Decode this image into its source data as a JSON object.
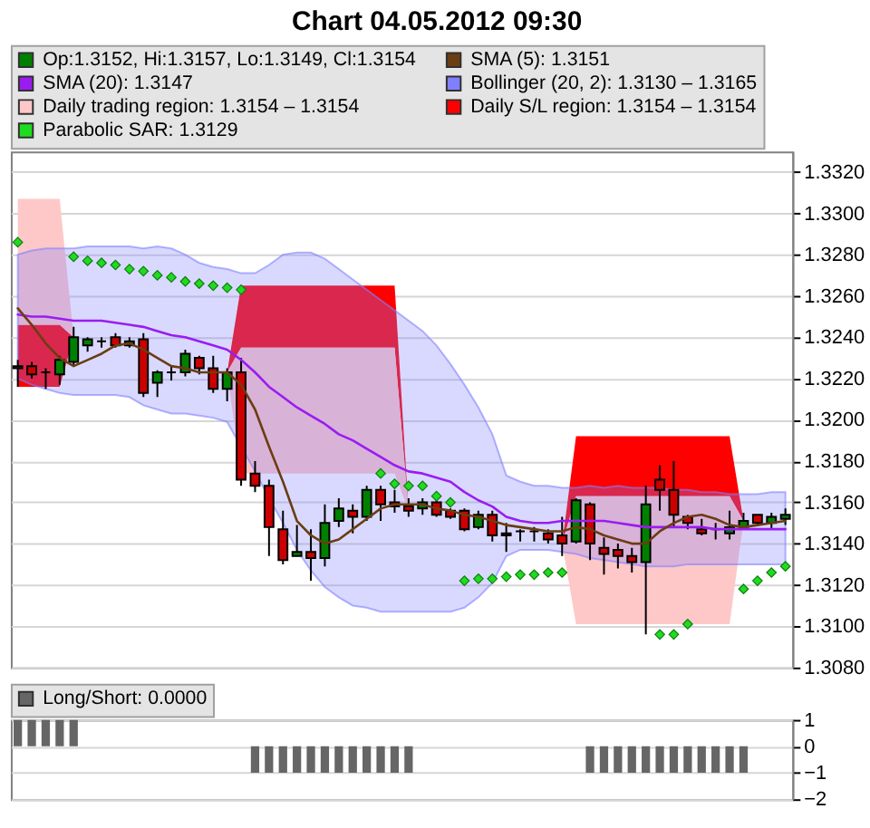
{
  "chart_data": [
    {
      "type": "candlestick",
      "title": "Chart 04.05.2012 09:30",
      "categories": [
        null,
        null,
        null,
        null,
        null,
        null,
        null,
        null,
        null,
        null,
        null,
        null,
        null,
        null,
        null,
        null,
        null,
        null,
        null,
        null,
        null,
        null,
        null,
        null,
        null,
        null,
        null,
        null,
        null,
        null,
        null,
        null,
        null,
        null,
        null,
        null,
        null,
        null,
        null,
        null,
        null,
        null,
        null,
        null,
        null,
        null,
        null,
        null,
        null,
        null,
        null,
        null,
        null,
        null,
        null,
        null
      ],
      "ylim": [
        1.308,
        1.333
      ],
      "yticks": [
        {
          "value": 1.308,
          "label": "1.3080"
        },
        {
          "value": 1.31,
          "label": "1.3100"
        },
        {
          "value": 1.312,
          "label": "1.3120"
        },
        {
          "value": 1.314,
          "label": "1.3140"
        },
        {
          "value": 1.316,
          "label": "1.3160"
        },
        {
          "value": 1.318,
          "label": "1.3180"
        },
        {
          "value": 1.32,
          "label": "1.3200"
        },
        {
          "value": 1.322,
          "label": "1.3220"
        },
        {
          "value": 1.324,
          "label": "1.3240"
        },
        {
          "value": 1.326,
          "label": "1.3260"
        },
        {
          "value": 1.328,
          "label": "1.3280"
        },
        {
          "value": 1.33,
          "label": "1.3300"
        },
        {
          "value": 1.332,
          "label": "1.3320"
        }
      ],
      "grid": "y",
      "legend": "top",
      "series": [
        {
          "name": "Op:1.3152, Hi:1.3157, Lo:1.3149, Cl:1.3154",
          "type": "candlestick",
          "color": "#008000",
          "ohlc": [
            [
              1.3225,
              1.3229,
              1.3216,
              1.3226
            ],
            [
              1.3226,
              1.3228,
              1.322,
              1.3222
            ],
            [
              1.3223,
              1.3225,
              1.3215,
              1.3223
            ],
            [
              1.3222,
              1.3231,
              1.3217,
              1.3229
            ],
            [
              1.3228,
              1.3245,
              1.3226,
              1.324
            ],
            [
              1.3236,
              1.324,
              1.3233,
              1.3239
            ],
            [
              1.3238,
              1.324,
              1.3235,
              1.3238
            ],
            [
              1.324,
              1.3242,
              1.3235,
              1.3236
            ],
            [
              1.3236,
              1.324,
              1.3235,
              1.3238
            ],
            [
              1.3239,
              1.3242,
              1.3211,
              1.3213
            ],
            [
              1.3218,
              1.3224,
              1.3211,
              1.3223
            ],
            [
              1.3223,
              1.3226,
              1.3219,
              1.3223
            ],
            [
              1.3223,
              1.3234,
              1.3221,
              1.3232
            ],
            [
              1.323,
              1.3231,
              1.3222,
              1.3225
            ],
            [
              1.3225,
              1.3231,
              1.3213,
              1.3215
            ],
            [
              1.3215,
              1.3225,
              1.3209,
              1.3223
            ],
            [
              1.3223,
              1.323,
              1.3168,
              1.3171
            ],
            [
              1.3174,
              1.318,
              1.3165,
              1.3168
            ],
            [
              1.3168,
              1.3171,
              1.3134,
              1.3148
            ],
            [
              1.3147,
              1.3156,
              1.313,
              1.3132
            ],
            [
              1.3134,
              1.3149,
              1.3134,
              1.3136
            ],
            [
              1.3136,
              1.3147,
              1.3122,
              1.3133
            ],
            [
              1.3133,
              1.3159,
              1.3129,
              1.315
            ],
            [
              1.3151,
              1.3162,
              1.3148,
              1.3157
            ],
            [
              1.3156,
              1.3159,
              1.3145,
              1.3153
            ],
            [
              1.3153,
              1.3168,
              1.3151,
              1.3166
            ],
            [
              1.3166,
              1.3168,
              1.3151,
              1.3159
            ],
            [
              1.316,
              1.3166,
              1.3155,
              1.3158
            ],
            [
              1.3158,
              1.3162,
              1.3153,
              1.3156
            ],
            [
              1.3157,
              1.3162,
              1.3154,
              1.316
            ],
            [
              1.316,
              1.3162,
              1.3153,
              1.3154
            ],
            [
              1.3156,
              1.3157,
              1.3152,
              1.3153
            ],
            [
              1.3156,
              1.3157,
              1.3146,
              1.3147
            ],
            [
              1.3148,
              1.3156,
              1.3147,
              1.3154
            ],
            [
              1.3154,
              1.3156,
              1.3141,
              1.3144
            ],
            [
              1.3145,
              1.315,
              1.3136,
              1.3144
            ],
            [
              1.3146,
              1.3147,
              1.3141,
              1.3146
            ],
            [
              1.3146,
              1.3148,
              1.3141,
              1.3146
            ],
            [
              1.3145,
              1.3147,
              1.314,
              1.3142
            ],
            [
              1.3144,
              1.3153,
              1.3134,
              1.314
            ],
            [
              1.3141,
              1.3162,
              1.314,
              1.3161
            ],
            [
              1.3159,
              1.316,
              1.3132,
              1.314
            ],
            [
              1.3138,
              1.3143,
              1.3125,
              1.3135
            ],
            [
              1.3137,
              1.314,
              1.3128,
              1.3134
            ],
            [
              1.3134,
              1.3138,
              1.3126,
              1.3131
            ],
            [
              1.3131,
              1.3168,
              1.3096,
              1.3159
            ],
            [
              1.3171,
              1.3178,
              1.3156,
              1.3166
            ],
            [
              1.3166,
              1.318,
              1.3148,
              1.3154
            ],
            [
              1.3153,
              1.3154,
              1.3147,
              1.315
            ],
            [
              1.3147,
              1.3152,
              1.3144,
              1.3145
            ],
            [
              1.3147,
              1.315,
              1.3142,
              1.3147
            ],
            [
              1.3145,
              1.3156,
              1.3142,
              1.3148
            ],
            [
              1.3148,
              1.3155,
              1.3147,
              1.3151
            ],
            [
              1.3154,
              1.3154,
              1.3149,
              1.315
            ],
            [
              1.315,
              1.3155,
              1.3147,
              1.3153
            ],
            [
              1.3152,
              1.3157,
              1.3149,
              1.3154
            ]
          ],
          "colors": [
            "#008000",
            "#cc0000",
            "#000000",
            "#008000",
            "#008000",
            "#008000",
            "#000000",
            "#cc0000",
            "#008000",
            "#cc0000",
            "#008000",
            "#000000",
            "#008000",
            "#cc0000",
            "#cc0000",
            "#008000",
            "#cc0000",
            "#cc0000",
            "#cc0000",
            "#cc0000",
            "#008000",
            "#cc0000",
            "#008000",
            "#008000",
            "#cc0000",
            "#008000",
            "#cc0000",
            "#cc0000",
            "#cc0000",
            "#008000",
            "#cc0000",
            "#cc0000",
            "#cc0000",
            "#008000",
            "#cc0000",
            "#cc0000",
            "#000000",
            "#000000",
            "#cc0000",
            "#cc0000",
            "#008000",
            "#cc0000",
            "#cc0000",
            "#cc0000",
            "#cc0000",
            "#008000",
            "#cc0000",
            "#cc0000",
            "#cc0000",
            "#cc0000",
            "#000000",
            "#008000",
            "#008000",
            "#cc0000",
            "#008000",
            "#008000"
          ]
        },
        {
          "name": "SMA (5): 1.3151",
          "type": "line",
          "color": "#6b3d12",
          "values": [
            1.3254,
            1.3246,
            1.3237,
            1.323,
            1.3226,
            1.3229,
            1.3232,
            1.3236,
            1.3237,
            1.3234,
            1.323,
            1.3226,
            1.3225,
            1.3223,
            1.3223,
            1.3223,
            1.3217,
            1.3205,
            1.3187,
            1.317,
            1.3151,
            1.3144,
            1.314,
            1.3142,
            1.3147,
            1.3152,
            1.3157,
            1.3159,
            1.3159,
            1.3159,
            1.3157,
            1.3156,
            1.3154,
            1.3153,
            1.3151,
            1.3149,
            1.3148,
            1.3147,
            1.3146,
            1.3146,
            1.3148,
            1.3147,
            1.3144,
            1.3142,
            1.314,
            1.314,
            1.3146,
            1.315,
            1.3153,
            1.3154,
            1.3152,
            1.3149,
            1.3148,
            1.3149,
            1.315,
            1.3151
          ]
        },
        {
          "name": "SMA (20): 1.3147",
          "type": "line",
          "color": "#9b1cf0",
          "values": [
            1.3251,
            1.325,
            1.325,
            1.3249,
            1.3248,
            1.3248,
            1.3248,
            1.3247,
            1.3246,
            1.3245,
            1.3243,
            1.3241,
            1.324,
            1.3238,
            1.3236,
            1.3234,
            1.3229,
            1.3223,
            1.3216,
            1.3211,
            1.3206,
            1.3202,
            1.3198,
            1.3193,
            1.319,
            1.3186,
            1.3182,
            1.3178,
            1.3175,
            1.3174,
            1.3172,
            1.317,
            1.3165,
            1.3161,
            1.3158,
            1.3153,
            1.3151,
            1.315,
            1.315,
            1.3151,
            1.3151,
            1.3151,
            1.3151,
            1.315,
            1.3149,
            1.3148,
            1.3148,
            1.3148,
            1.3148,
            1.3148,
            1.3147,
            1.3147,
            1.3147,
            1.3147,
            1.3147,
            1.3147
          ]
        },
        {
          "name": "Bollinger (20, 2): 1.3130 – 1.3165",
          "type": "area",
          "color": "#8080ff",
          "values": [
            null,
            null,
            null,
            null,
            null,
            null,
            null,
            null,
            null,
            null,
            null,
            null,
            null,
            null,
            null,
            null,
            null,
            null,
            null,
            null,
            null,
            null,
            null,
            null,
            null,
            null,
            null,
            null,
            null,
            null,
            null,
            null,
            null,
            null,
            null,
            null,
            null,
            null,
            null,
            null,
            null,
            null,
            null,
            null,
            null,
            null,
            null,
            null,
            null,
            null,
            null,
            null,
            null,
            null,
            null,
            null
          ],
          "lower": [
            1.322,
            1.3217,
            1.3215,
            1.3213,
            1.3212,
            1.3212,
            1.3212,
            1.3212,
            1.3211,
            1.3207,
            1.3205,
            1.3203,
            1.3203,
            1.3202,
            1.3201,
            1.3199,
            1.3187,
            1.3175,
            1.3162,
            1.315,
            1.3137,
            1.3127,
            1.3119,
            1.3114,
            1.311,
            1.3109,
            1.3107,
            1.3107,
            1.3107,
            1.3107,
            1.3107,
            1.3107,
            1.3109,
            1.3114,
            1.3121,
            1.3134,
            1.3137,
            1.3137,
            1.3137,
            1.3136,
            1.3135,
            1.3133,
            1.3132,
            1.3131,
            1.313,
            1.3129,
            1.3129,
            1.3129,
            1.313,
            1.313,
            1.313,
            1.313,
            1.313,
            1.313,
            1.313,
            1.313
          ],
          "upper": [
            1.328,
            1.3282,
            1.3283,
            1.3283,
            1.3283,
            1.3284,
            1.3284,
            1.3284,
            1.3284,
            1.3283,
            1.3284,
            1.3283,
            1.328,
            1.3276,
            1.3274,
            1.3273,
            1.3271,
            1.3271,
            1.3275,
            1.328,
            1.3281,
            1.3281,
            1.3278,
            1.3273,
            1.3268,
            1.3263,
            1.3258,
            1.3253,
            1.3248,
            1.3243,
            1.3236,
            1.3227,
            1.3217,
            1.3206,
            1.3193,
            1.3173,
            1.317,
            1.3168,
            1.3168,
            1.3167,
            1.3167,
            1.3168,
            1.3167,
            1.3168,
            1.3167,
            1.3167,
            1.3167,
            1.3166,
            1.3166,
            1.3165,
            1.3165,
            1.3164,
            1.3164,
            1.3164,
            1.3165,
            1.3165
          ]
        },
        {
          "name": "Daily trading region: 1.3154 – 1.3154",
          "type": "area",
          "color": "#ffc8c8",
          "values": [
            null,
            null,
            null,
            null,
            null,
            null,
            null,
            null,
            null,
            null,
            null,
            null,
            null,
            null,
            null,
            null,
            null,
            null,
            null,
            null,
            null,
            null,
            null,
            null,
            null,
            null,
            null,
            null,
            null,
            null,
            null,
            null,
            null,
            null,
            null,
            null,
            null,
            null,
            null,
            null,
            null,
            null,
            null,
            null,
            null,
            null,
            null,
            null,
            null,
            null,
            null,
            null,
            null,
            null,
            null,
            null
          ],
          "lower": [
            1.3246,
            1.3246,
            1.3246,
            1.3246,
            1.324,
            1.3239,
            1.3238,
            1.3236,
            1.3238,
            1.3213,
            1.3223,
            1.3223,
            1.3232,
            1.3225,
            1.3215,
            1.3223,
            1.3174,
            1.3174,
            1.3174,
            1.3174,
            1.3174,
            1.3174,
            1.3174,
            1.3174,
            1.3174,
            1.3174,
            1.3174,
            1.3174,
            1.3156,
            1.316,
            1.3154,
            1.3153,
            1.3147,
            1.3154,
            1.3144,
            1.3144,
            1.3146,
            1.3146,
            1.3142,
            1.314,
            1.3101,
            1.3101,
            1.3101,
            1.3101,
            1.3101,
            1.3101,
            1.3101,
            1.3101,
            1.3101,
            1.3101,
            1.3101,
            1.3101,
            1.3151,
            1.315,
            1.3153,
            1.3154
          ],
          "upper": [
            1.3307,
            1.3307,
            1.3307,
            1.3307,
            1.324,
            1.3239,
            1.3238,
            1.3236,
            1.3238,
            1.3213,
            1.3223,
            1.3223,
            1.3232,
            1.3225,
            1.3215,
            1.3223,
            1.3235,
            1.3235,
            1.3235,
            1.3235,
            1.3235,
            1.3235,
            1.3235,
            1.3235,
            1.3235,
            1.3235,
            1.3235,
            1.3235,
            1.3156,
            1.316,
            1.3154,
            1.3153,
            1.3147,
            1.3154,
            1.3144,
            1.3144,
            1.3146,
            1.3146,
            1.3142,
            1.314,
            1.3163,
            1.3163,
            1.3163,
            1.3163,
            1.3163,
            1.3163,
            1.3163,
            1.3163,
            1.3163,
            1.3163,
            1.3163,
            1.3163,
            1.3151,
            1.315,
            1.3153,
            1.3154
          ]
        },
        {
          "name": "Daily S/L region: 1.3154 – 1.3154",
          "type": "area",
          "color": "#ff0000",
          "values": [
            null,
            null,
            null,
            null,
            null,
            null,
            null,
            null,
            null,
            null,
            null,
            null,
            null,
            null,
            null,
            null,
            null,
            null,
            null,
            null,
            null,
            null,
            null,
            null,
            null,
            null,
            null,
            null,
            null,
            null,
            null,
            null,
            null,
            null,
            null,
            null,
            null,
            null,
            null,
            null,
            null,
            null,
            null,
            null,
            null,
            null,
            null,
            null,
            null,
            null,
            null,
            null,
            null,
            null,
            null,
            null
          ],
          "lower": [
            1.3216,
            1.3216,
            1.3216,
            1.3216,
            1.324,
            1.3239,
            1.3238,
            1.3236,
            1.3238,
            1.3213,
            1.3223,
            1.3223,
            1.3232,
            1.3225,
            1.3215,
            1.3223,
            1.3235,
            1.3235,
            1.3235,
            1.3235,
            1.3235,
            1.3235,
            1.3235,
            1.3235,
            1.3235,
            1.3235,
            1.3235,
            1.3235,
            1.3156,
            1.316,
            1.3154,
            1.3153,
            1.3147,
            1.3154,
            1.3144,
            1.3144,
            1.3146,
            1.3146,
            1.3142,
            1.314,
            1.3163,
            1.3163,
            1.3163,
            1.3163,
            1.3163,
            1.3163,
            1.3163,
            1.3163,
            1.3163,
            1.3163,
            1.3163,
            1.3163,
            1.3151,
            1.315,
            1.3153,
            1.3154
          ],
          "upper": [
            1.3246,
            1.3246,
            1.3246,
            1.3246,
            1.324,
            1.3239,
            1.3238,
            1.3236,
            1.3238,
            1.3213,
            1.3223,
            1.3223,
            1.3232,
            1.3225,
            1.3215,
            1.3223,
            1.3265,
            1.3265,
            1.3265,
            1.3265,
            1.3265,
            1.3265,
            1.3265,
            1.3265,
            1.3265,
            1.3265,
            1.3265,
            1.3265,
            1.3156,
            1.316,
            1.3154,
            1.3153,
            1.3147,
            1.3154,
            1.3144,
            1.3144,
            1.3146,
            1.3146,
            1.3142,
            1.314,
            1.3192,
            1.3192,
            1.3192,
            1.3192,
            1.3192,
            1.3192,
            1.3192,
            1.3192,
            1.3192,
            1.3192,
            1.3192,
            1.3192,
            1.3151,
            1.315,
            1.3153,
            1.3154
          ]
        },
        {
          "name": "Parabolic SAR: 1.3129",
          "type": "scatter",
          "color": "#1edc1e",
          "marker": "diamond",
          "values": [
            1.3286,
            null,
            null,
            null,
            1.3279,
            1.3277,
            1.3276,
            1.3275,
            1.3273,
            1.3272,
            1.327,
            1.3269,
            1.3267,
            1.3266,
            1.3265,
            1.3264,
            1.3263,
            null,
            null,
            null,
            null,
            null,
            null,
            null,
            null,
            null,
            1.3174,
            1.3169,
            1.3168,
            1.3168,
            1.3163,
            1.316,
            1.3122,
            1.3123,
            1.3123,
            1.3124,
            1.3125,
            1.3125,
            1.3126,
            1.3126,
            null,
            null,
            null,
            null,
            null,
            null,
            1.3096,
            1.3096,
            1.3101,
            null,
            null,
            null,
            1.3118,
            1.3122,
            1.3126,
            1.3129
          ]
        }
      ]
    },
    {
      "type": "bar",
      "categories": [
        null,
        null,
        null,
        null,
        null,
        null,
        null,
        null,
        null,
        null,
        null,
        null,
        null,
        null,
        null,
        null,
        null,
        null,
        null,
        null,
        null,
        null,
        null,
        null,
        null,
        null,
        null,
        null,
        null,
        null,
        null,
        null,
        null,
        null,
        null,
        null,
        null,
        null,
        null,
        null,
        null,
        null,
        null,
        null,
        null,
        null,
        null,
        null,
        null,
        null,
        null,
        null,
        null,
        null,
        null,
        null
      ],
      "ylim": [
        -2,
        1
      ],
      "yticks": [
        {
          "value": -2,
          "label": "−2"
        },
        {
          "value": -1,
          "label": "−1"
        },
        0,
        1
      ],
      "grid": "y",
      "legend": "top",
      "series": [
        {
          "name": "Long/Short: 0.0000",
          "color": "#666666",
          "values": [
            1,
            1,
            1,
            1,
            1,
            0,
            0,
            0,
            0,
            0,
            0,
            0,
            0,
            0,
            0,
            0,
            0,
            -1,
            -1,
            -1,
            -1,
            -1,
            -1,
            -1,
            -1,
            -1,
            -1,
            -1,
            -1,
            0,
            0,
            0,
            0,
            0,
            0,
            0,
            0,
            0,
            0,
            0,
            0,
            -1,
            -1,
            -1,
            -1,
            -1,
            -1,
            -1,
            -1,
            -1,
            -1,
            -1,
            -1,
            0,
            0,
            0
          ]
        }
      ]
    }
  ]
}
